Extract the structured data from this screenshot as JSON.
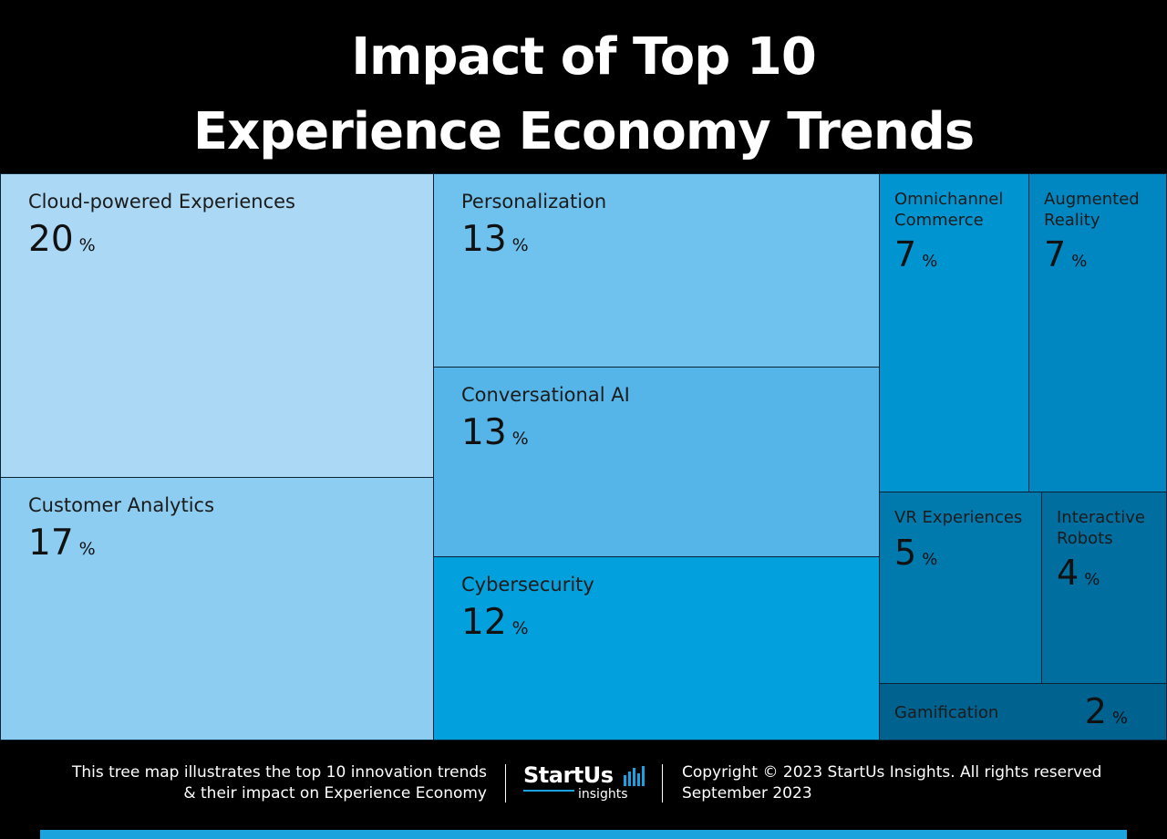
{
  "title": {
    "line1": "Impact of Top 10",
    "line2": "Experience Economy Trends"
  },
  "chart_data": {
    "type": "treemap",
    "title": "Impact of Top 10 Experience Economy Trends",
    "unit": "%",
    "items": [
      {
        "label": "Cloud-powered Experiences",
        "value": 20,
        "color": "#abd8f5"
      },
      {
        "label": "Customer Analytics",
        "value": 17,
        "color": "#8dcdf1"
      },
      {
        "label": "Personalization",
        "value": 13,
        "color": "#70c2ee"
      },
      {
        "label": "Conversational AI",
        "value": 13,
        "color": "#55b5e8"
      },
      {
        "label": "Cybersecurity",
        "value": 12,
        "color": "#02a0dc"
      },
      {
        "label": "Omnichannel Commerce",
        "value": 7,
        "color": "#0094d1"
      },
      {
        "label": "Augmented Reality",
        "value": 7,
        "color": "#0087c2"
      },
      {
        "label": "VR Experiences",
        "value": 5,
        "color": "#0079ad"
      },
      {
        "label": "Interactive Robots",
        "value": 4,
        "color": "#006e9f"
      },
      {
        "label": "Gamification",
        "value": 2,
        "color": "#00628f"
      }
    ]
  },
  "footer": {
    "description_line1": "This tree map illustrates the top 10 innovation trends",
    "description_line2": "& their impact on Experience Economy",
    "logo_text": "StartUs",
    "logo_sub": "insights",
    "copyright": "Copyright © 2023 StartUs Insights. All rights reserved",
    "date": "September 2023"
  },
  "colors": {
    "background": "#000000",
    "accent": "#1aa3dc"
  }
}
